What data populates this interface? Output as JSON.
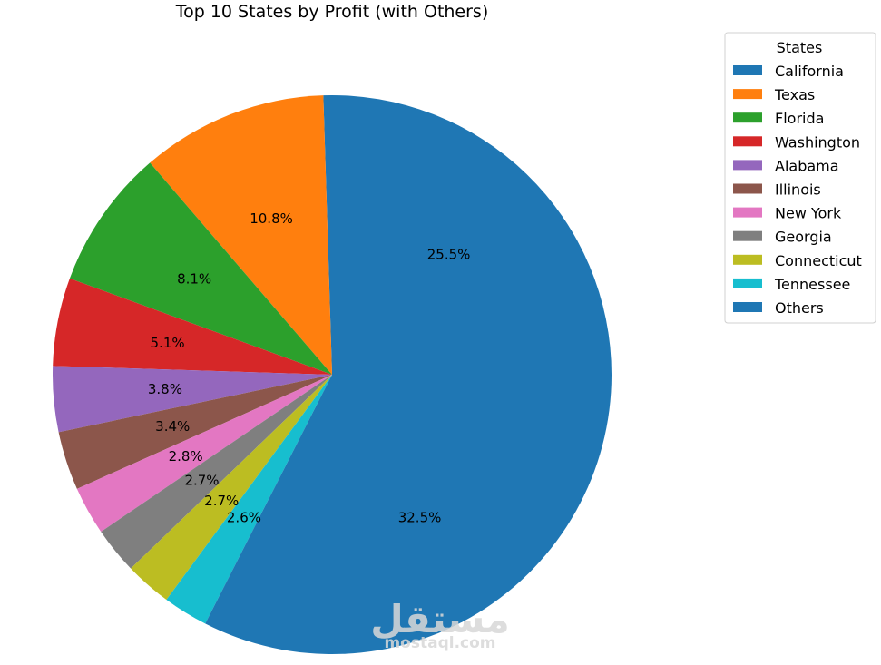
{
  "chart_data": {
    "type": "pie",
    "title": "Top 10 States by Profit (with Others)",
    "legend": {
      "title": "States",
      "position": "upper-right-outside"
    },
    "startangle_deg": 0,
    "direction": "counterclockwise",
    "slices": [
      {
        "label": "California",
        "value": 25.5,
        "pct_label": "25.5%",
        "color": "#1f77b4"
      },
      {
        "label": "Texas",
        "value": 10.8,
        "pct_label": "10.8%",
        "color": "#ff7f0e"
      },
      {
        "label": "Florida",
        "value": 8.1,
        "pct_label": "8.1%",
        "color": "#2ca02c"
      },
      {
        "label": "Washington",
        "value": 5.1,
        "pct_label": "5.1%",
        "color": "#d62728"
      },
      {
        "label": "Alabama",
        "value": 3.8,
        "pct_label": "3.8%",
        "color": "#9467bd"
      },
      {
        "label": "Illinois",
        "value": 3.4,
        "pct_label": "3.4%",
        "color": "#8c564b"
      },
      {
        "label": "New York",
        "value": 2.8,
        "pct_label": "2.8%",
        "color": "#e377c2"
      },
      {
        "label": "Georgia",
        "value": 2.7,
        "pct_label": "2.7%",
        "color": "#7f7f7f"
      },
      {
        "label": "Connecticut",
        "value": 2.7,
        "pct_label": "2.7%",
        "color": "#bcbd22"
      },
      {
        "label": "Tennessee",
        "value": 2.6,
        "pct_label": "2.6%",
        "color": "#17becf"
      },
      {
        "label": "Others",
        "value": 32.5,
        "pct_label": "32.5%",
        "color": "#1f77b4"
      }
    ]
  },
  "watermark": {
    "main": "مستقل",
    "sub": "mostaql.com"
  }
}
